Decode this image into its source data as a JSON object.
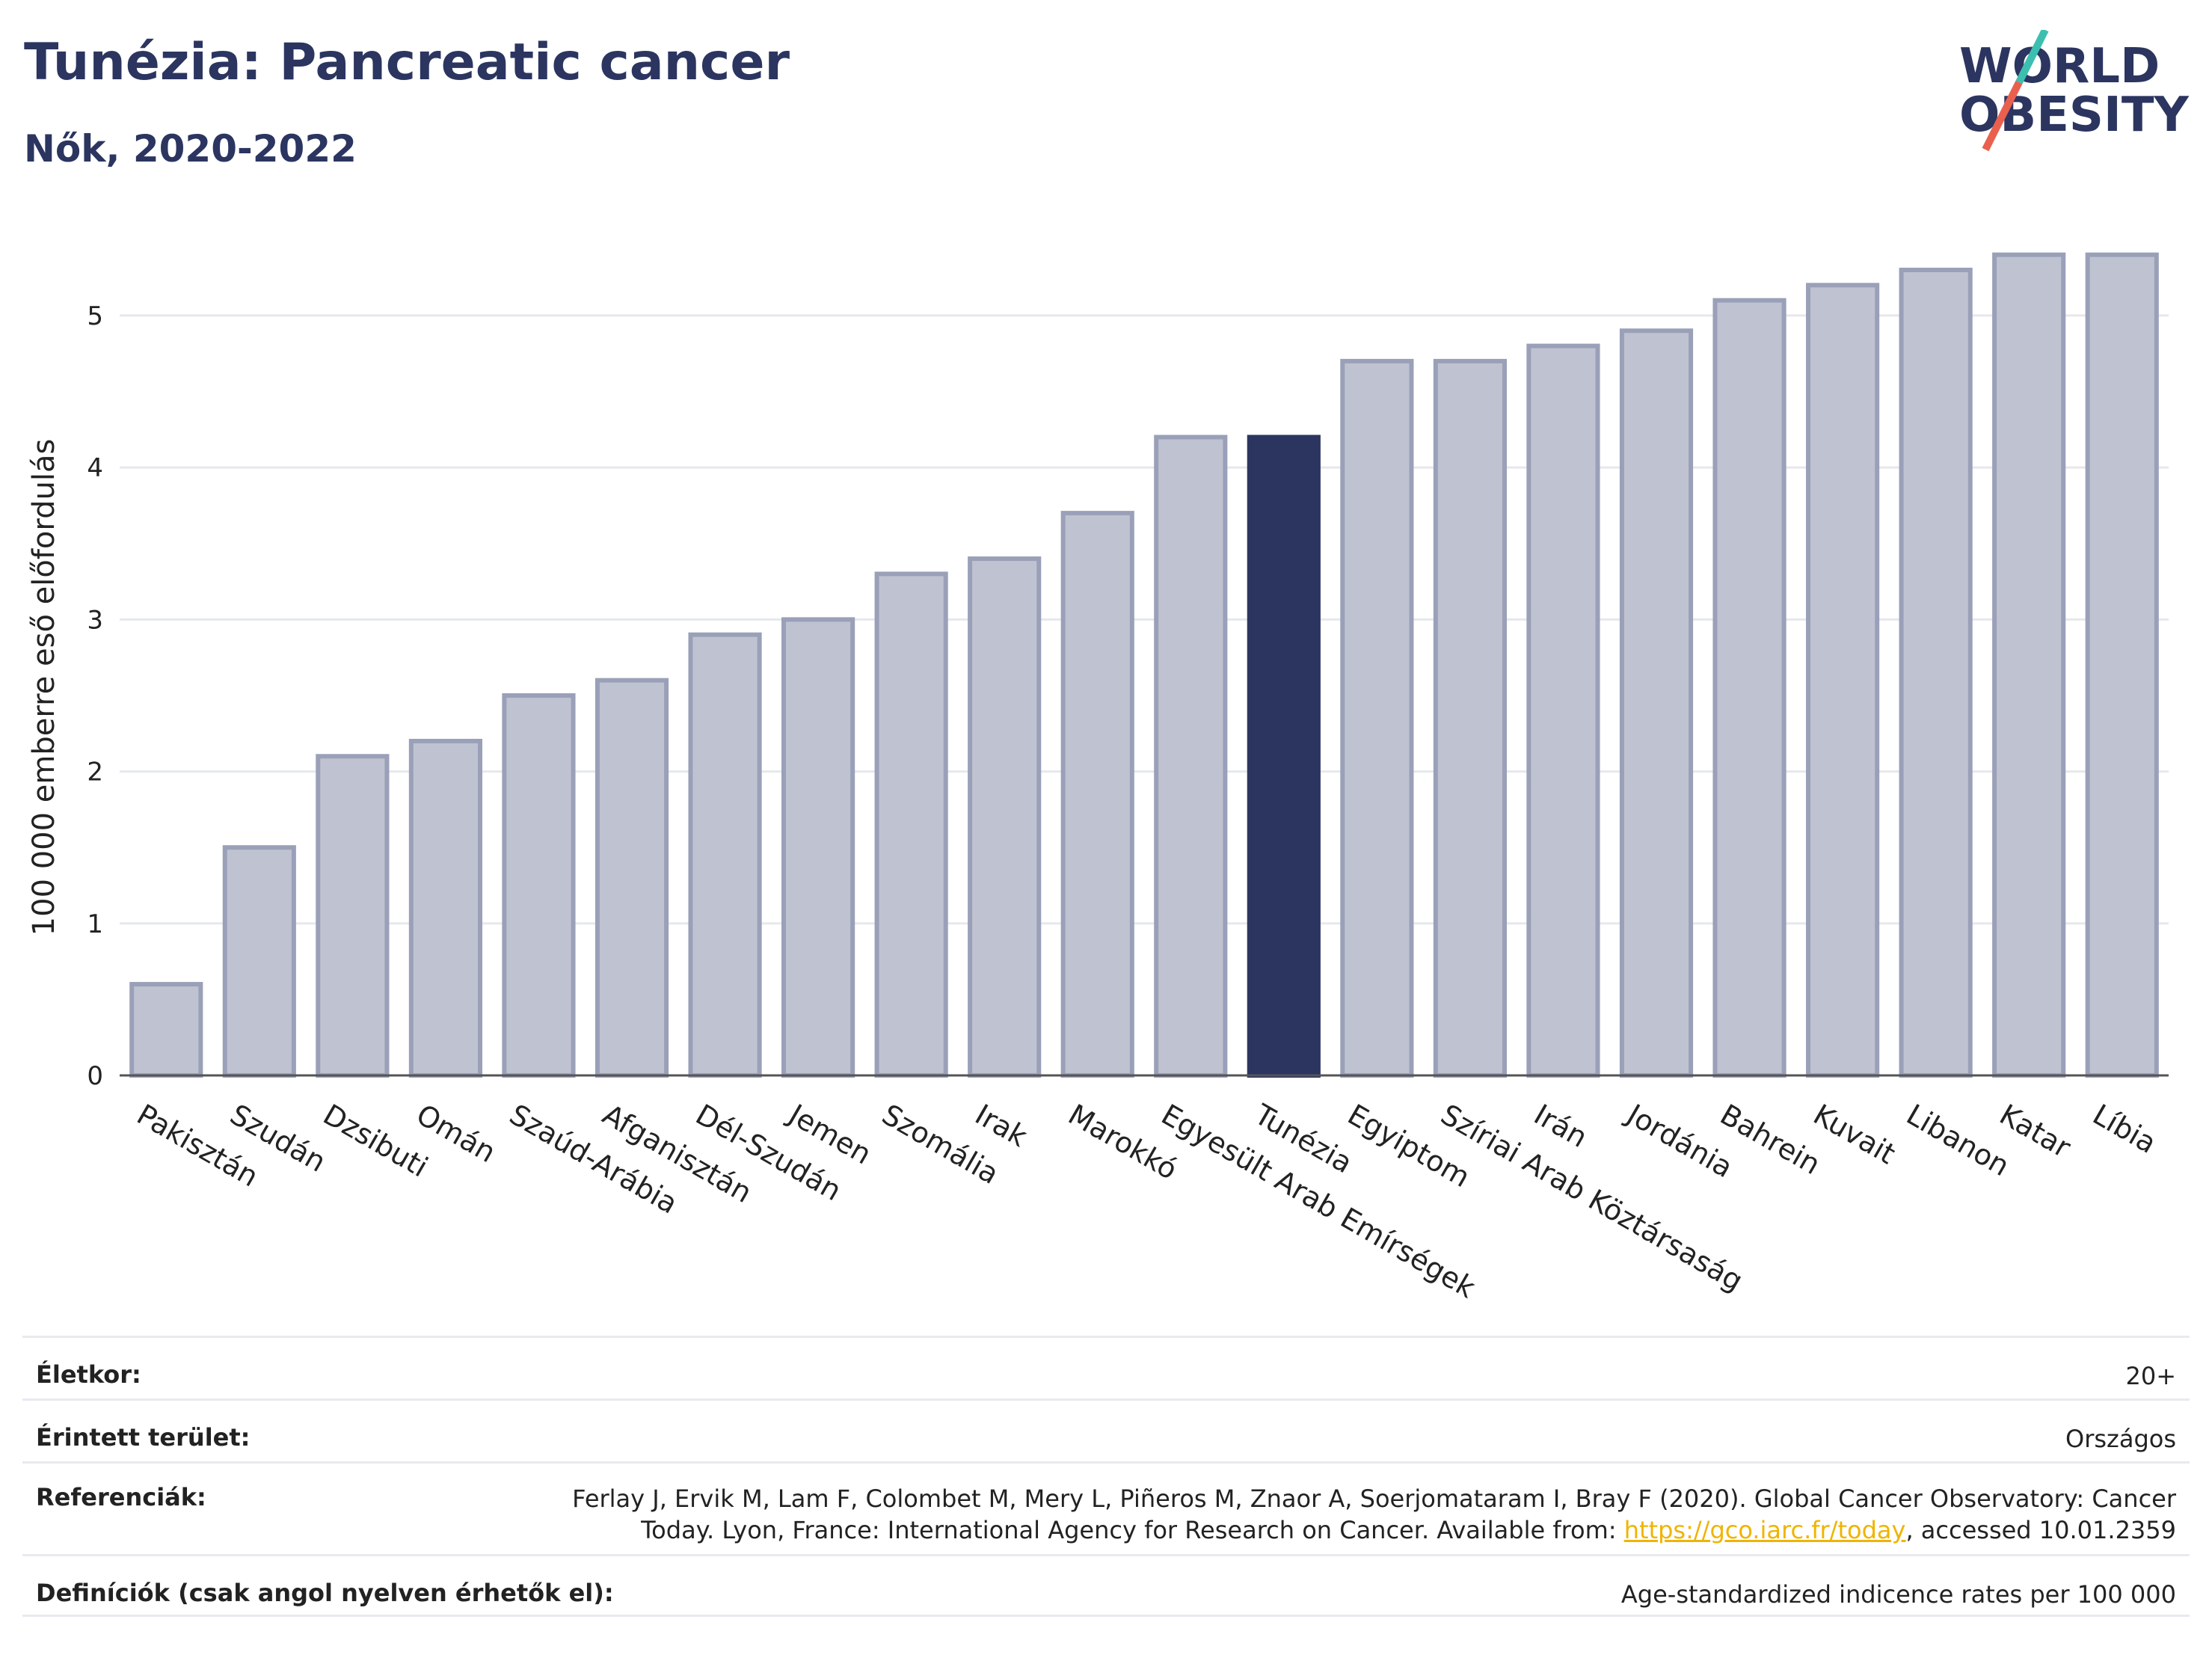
{
  "title": "Tunézia: Pancreatic cancer",
  "subtitle": "Nők, 2020-2022",
  "logo": {
    "line1": "WORLD",
    "line2": "OBESITY"
  },
  "colors": {
    "highlight": "#2b3560",
    "bar": "#bfc3d1",
    "bar_border": "#9aa0b8",
    "title": "#2b3560",
    "link": "#f0b400"
  },
  "chart_data": {
    "type": "bar",
    "categories": [
      "Pakisztán",
      "Szudán",
      "Dzsibuti",
      "Omán",
      "Szaúd-Arábia",
      "Afganisztán",
      "Dél-Szudán",
      "Jemen",
      "Szomália",
      "Irak",
      "Marokkó",
      "Egyesült Arab Emírségek",
      "Tunézia",
      "Egyiptom",
      "Szíriai Arab Köztársaság",
      "Irán",
      "Jordánia",
      "Bahrein",
      "Kuvait",
      "Libanon",
      "Katar",
      "Líbia"
    ],
    "values": [
      0.6,
      1.5,
      2.1,
      2.2,
      2.5,
      2.6,
      2.9,
      3.0,
      3.3,
      3.4,
      3.7,
      4.2,
      4.2,
      4.7,
      4.7,
      4.8,
      4.9,
      5.1,
      5.2,
      5.3,
      5.4,
      5.4
    ],
    "highlight": "Tunézia",
    "ylabel": "100 000 emberre eső előfordulás",
    "yticks": [
      0,
      1,
      2,
      3,
      4,
      5
    ],
    "ylim": [
      0,
      5.6
    ],
    "grid": true
  },
  "info": [
    {
      "label": "Életkor:",
      "value": "20+"
    },
    {
      "label": "Érintett terület:",
      "value": "Országos"
    },
    {
      "label": "Referenciák:",
      "value_before": "Ferlay J, Ervik M, Lam F, Colombet M, Mery L, Piñeros M, Znaor A, Soerjomataram I, Bray F (2020). Global Cancer Observatory: Cancer Today. Lyon, France: International Agency for Research on Cancer. Available from: ",
      "link": "https://gco.iarc.fr/today",
      "value_after": ", accessed 10.01.2359"
    },
    {
      "label": "Definíciók (csak angol nyelven érhetők el):",
      "value": "Age-standardized indicence rates per 100 000"
    }
  ]
}
